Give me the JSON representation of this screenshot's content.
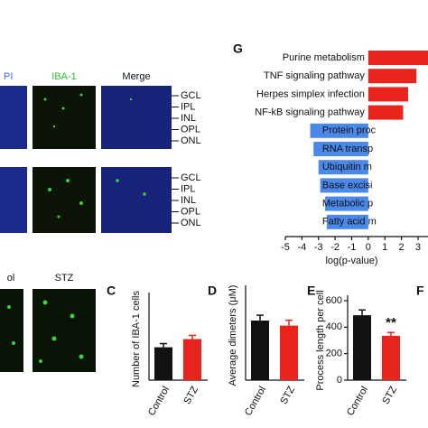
{
  "image_panel": {
    "headers": [
      "PI",
      "IBA-1",
      "Merge"
    ],
    "layers_top": [
      "GCL",
      "IPL",
      "INL",
      "OPL",
      "ONL"
    ],
    "layers_bottom": [
      "GCL",
      "IPL",
      "INL",
      "OPL",
      "ONL"
    ]
  },
  "image_panel_b": {
    "labels": [
      "ol",
      "STZ"
    ]
  },
  "panel_letters": {
    "g": "G",
    "c": "C",
    "d": "D",
    "e": "E",
    "f": "F"
  },
  "chart_data": [
    {
      "type": "hbar",
      "categories": [
        "Purine metabolism",
        "TNF signaling pathway",
        "Herpes simplex infection",
        "NF-kB signaling pathway",
        "Protein proc",
        "RNA transp",
        "Ubiquitin m",
        "Base excisi",
        "Metabolic p",
        "Fatty acid m"
      ],
      "values": [
        4,
        2.9,
        2.4,
        2.1,
        -3.5,
        -3.3,
        -3.0,
        -2.9,
        -2.6,
        -2.5
      ],
      "colors": {
        "positive": "#e8241c",
        "negative": "#4a88ea"
      },
      "xlim": [
        -5,
        3.6
      ],
      "xticks": [
        -5,
        -4,
        -3,
        -2,
        -1,
        0,
        1,
        2,
        3
      ],
      "xlabel": "log(p-value)"
    },
    {
      "type": "bar",
      "ylabel": "Number of IBA-1 cells",
      "categories": [
        "Control",
        "STZ"
      ],
      "values": [
        8,
        10
      ],
      "errors": [
        0.9,
        0.9
      ],
      "colors": [
        "#111111",
        "#e8241c"
      ],
      "ylim": [
        0,
        20
      ]
    },
    {
      "type": "bar",
      "ylabel": "Average dimeters (μM)",
      "categories": [
        "Control",
        "STZ"
      ],
      "values": [
        20,
        18.3
      ],
      "errors": [
        1.8,
        1.8
      ],
      "colors": [
        "#111111",
        "#e8241c"
      ],
      "ylim": [
        0,
        30
      ]
    },
    {
      "type": "bar",
      "ylabel": "Process length per cell",
      "categories": [
        "Control",
        "STZ"
      ],
      "values": [
        490,
        335
      ],
      "errors": [
        40,
        25
      ],
      "colors": [
        "#111111",
        "#e8241c"
      ],
      "ylim": [
        0,
        600
      ],
      "yticks": [
        0,
        200,
        400,
        600
      ],
      "annotation": "**"
    }
  ]
}
